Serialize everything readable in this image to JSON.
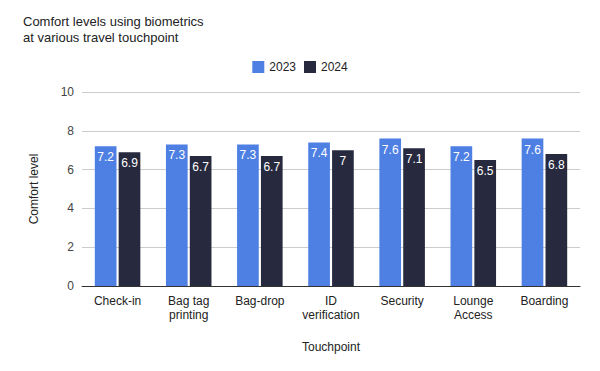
{
  "chart_data": {
    "type": "bar",
    "title": "Comfort levels using biometrics\nat various travel touchpoint",
    "x_label": "Touchpoint",
    "y_label": "Comfort level",
    "categories": [
      "Check-in",
      "Bag tag\nprinting",
      "Bag-drop",
      "ID\nverification",
      "Security",
      "Lounge\nAccess",
      "Boarding"
    ],
    "series": [
      {
        "name": "2023",
        "color": "#4e7fe3",
        "values": [
          7.2,
          7.3,
          7.3,
          7.4,
          7.6,
          7.2,
          7.6
        ]
      },
      {
        "name": "2024",
        "color": "#272a3f",
        "values": [
          6.9,
          6.7,
          6.7,
          7,
          7.1,
          6.5,
          6.8
        ]
      }
    ],
    "ylim": [
      0,
      10
    ],
    "yticks": [
      0,
      2,
      4,
      6,
      8,
      10
    ],
    "grid": true,
    "legend": "top",
    "data_labels": true
  }
}
